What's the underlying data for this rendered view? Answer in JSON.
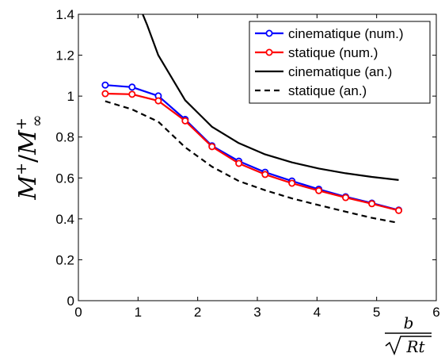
{
  "chart_data": {
    "type": "line",
    "xlabel": {
      "numerator": "b",
      "denominator_radicand": "Rt"
    },
    "ylabel": {
      "base": "M",
      "sup": "+",
      "den_base": "M",
      "den_sup": "+",
      "den_sub": "∞"
    },
    "xlim": [
      0,
      6
    ],
    "ylim": [
      0,
      1.4
    ],
    "xticks": [
      0,
      1,
      2,
      3,
      4,
      5,
      6
    ],
    "yticks": [
      0,
      0.2,
      0.4,
      0.6,
      0.8,
      1,
      1.2,
      1.4
    ],
    "xtick_labels": [
      "0",
      "1",
      "2",
      "3",
      "4",
      "5",
      "6"
    ],
    "ytick_labels": [
      "0",
      "0.2",
      "0.4",
      "0.6",
      "0.8",
      "1",
      "1.2",
      "1.4"
    ],
    "grid": false,
    "legend_position": "top-right",
    "series": [
      {
        "name": "cinematique (num.)",
        "color": "#0000ff",
        "style": "solid",
        "marker": "circle",
        "x": [
          0.45,
          0.9,
          1.34,
          1.79,
          2.24,
          2.69,
          3.13,
          3.58,
          4.03,
          4.48,
          4.92,
          5.37
        ],
        "y": [
          1.054,
          1.044,
          1.001,
          0.886,
          0.757,
          0.682,
          0.628,
          0.585,
          0.545,
          0.508,
          0.477,
          0.443
        ]
      },
      {
        "name": "statique (num.)",
        "color": "#ff0000",
        "style": "solid",
        "marker": "circle",
        "x": [
          0.45,
          0.9,
          1.34,
          1.79,
          2.24,
          2.69,
          3.13,
          3.58,
          4.03,
          4.48,
          4.92,
          5.37
        ],
        "y": [
          1.012,
          1.009,
          0.977,
          0.879,
          0.753,
          0.671,
          0.617,
          0.574,
          0.538,
          0.504,
          0.474,
          0.441
        ]
      },
      {
        "name": "cinematique (an.)",
        "color": "#000000",
        "style": "solid",
        "marker": "none",
        "x": [
          1.05,
          1.15,
          1.34,
          1.79,
          2.24,
          2.69,
          3.13,
          3.58,
          4.03,
          4.48,
          4.92,
          5.37
        ],
        "y": [
          1.42,
          1.35,
          1.2,
          0.98,
          0.85,
          0.77,
          0.715,
          0.676,
          0.646,
          0.623,
          0.605,
          0.59
        ]
      },
      {
        "name": "statique (an.)",
        "color": "#000000",
        "style": "dashed",
        "marker": "none",
        "x": [
          0.45,
          0.9,
          1.34,
          1.79,
          2.24,
          2.69,
          3.13,
          3.58,
          4.03,
          4.48,
          4.92,
          5.37
        ],
        "y": [
          0.975,
          0.935,
          0.875,
          0.75,
          0.655,
          0.585,
          0.54,
          0.5,
          0.467,
          0.435,
          0.405,
          0.38
        ]
      }
    ]
  }
}
